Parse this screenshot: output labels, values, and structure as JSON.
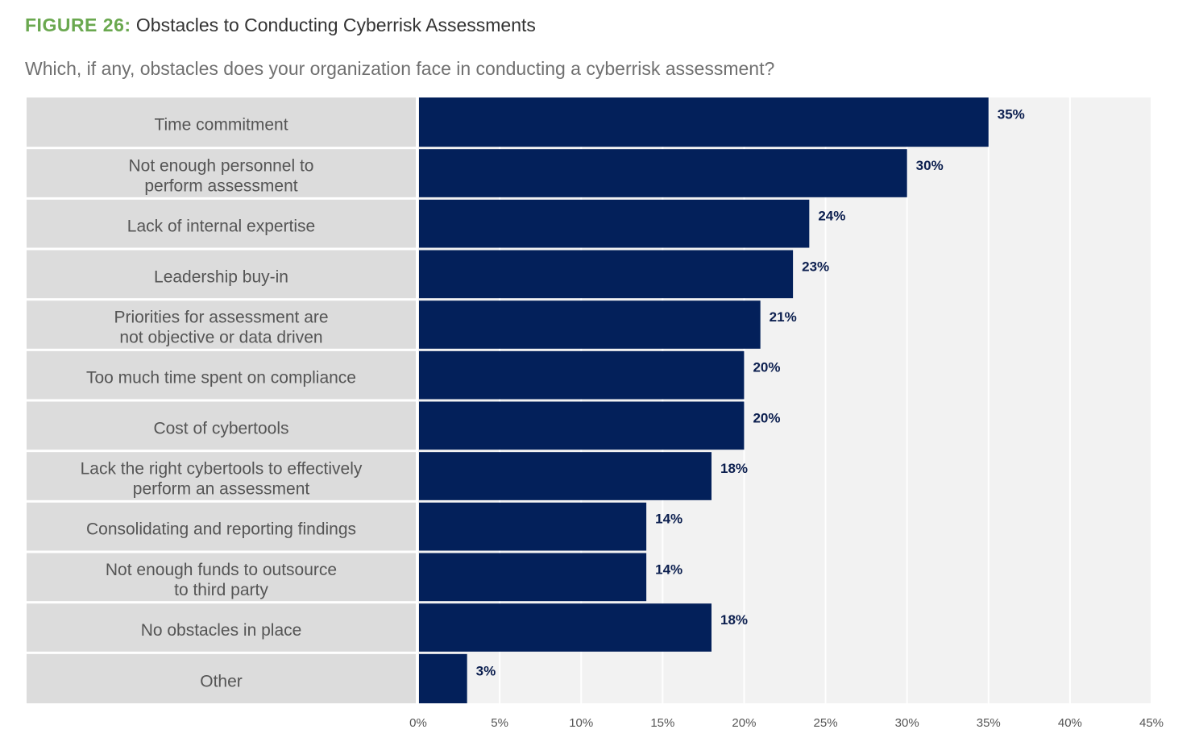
{
  "header": {
    "figure_tag": "FIGURE 26:",
    "title": "Obstacles to Conducting Cyberrisk Assessments",
    "subtitle": "Which, if any, obstacles does your organization face in conducting a cyberrisk assessment?"
  },
  "colors": {
    "bar": "#03205a",
    "label_band": "#dcdcdc",
    "plot_bg": "#f2f2f2",
    "grid": "#ffffff",
    "accent": "#6aa84f"
  },
  "chart_data": {
    "type": "bar",
    "orientation": "horizontal",
    "title": "Obstacles to Conducting Cyberrisk Assessments",
    "categories": [
      [
        "Time commitment"
      ],
      [
        "Not enough personnel to",
        "perform assessment"
      ],
      [
        "Lack of internal expertise"
      ],
      [
        "Leadership buy-in"
      ],
      [
        "Priorities for assessment are",
        "not objective or data driven"
      ],
      [
        "Too much time spent on compliance"
      ],
      [
        "Cost of cybertools"
      ],
      [
        "Lack the right cybertools to effectively",
        "perform an assessment"
      ],
      [
        "Consolidating and reporting findings"
      ],
      [
        "Not enough funds to outsource",
        "to third party"
      ],
      [
        "No obstacles in place"
      ],
      [
        "Other"
      ]
    ],
    "values": [
      35,
      30,
      24,
      23,
      21,
      20,
      20,
      18,
      14,
      14,
      18,
      3
    ],
    "value_labels": [
      "35%",
      "30%",
      "24%",
      "23%",
      "21%",
      "20%",
      "20%",
      "18%",
      "14%",
      "14%",
      "18%",
      "3%"
    ],
    "xlim": [
      0,
      45
    ],
    "ticks": [
      0,
      5,
      10,
      15,
      20,
      25,
      30,
      35,
      40,
      45
    ],
    "tick_labels": [
      "0%",
      "5%",
      "10%",
      "15%",
      "20%",
      "25%",
      "30%",
      "35%",
      "40%",
      "45%"
    ],
    "grid": true,
    "xlabel": "",
    "ylabel": ""
  }
}
